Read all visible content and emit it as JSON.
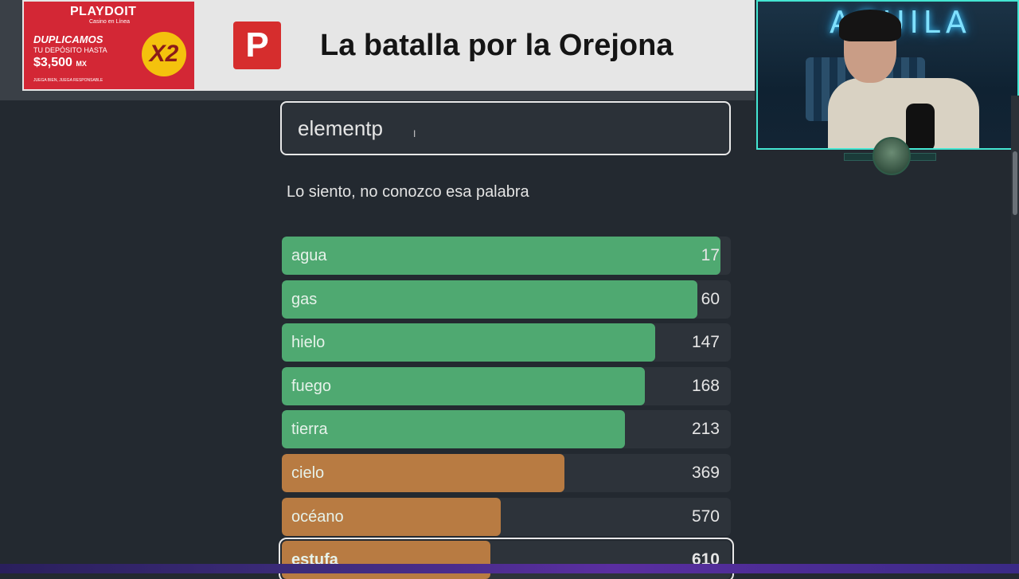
{
  "ad": {
    "brand": "PLAYDOIT",
    "sub": "Casino en Línea",
    "line1": "DUPLICAMOS",
    "line2": "TU DEPÓSITO HASTA",
    "amount": "$3,500",
    "currency": "MX",
    "multiplier": "X2",
    "fine_print": "JUEGA BIEN, JUEGA RESPONSABLE"
  },
  "banner": {
    "logo_letter": "P",
    "title": "La batalla por la Orejona"
  },
  "game": {
    "input_value": "elementp",
    "message": "Lo siento, no conozco esa palabra",
    "colors": {
      "close": "#4fa971",
      "medium": "#b87b42",
      "track": "#2d333a"
    },
    "results": [
      {
        "word": "agua",
        "rank": "17",
        "fill": 0.977,
        "tier": "close"
      },
      {
        "word": "gas",
        "rank": "60",
        "fill": 0.925,
        "tier": "close"
      },
      {
        "word": "hielo",
        "rank": "147",
        "fill": 0.832,
        "tier": "close"
      },
      {
        "word": "fuego",
        "rank": "168",
        "fill": 0.809,
        "tier": "close"
      },
      {
        "word": "tierra",
        "rank": "213",
        "fill": 0.765,
        "tier": "close"
      },
      {
        "word": "cielo",
        "rank": "369",
        "fill": 0.629,
        "tier": "medium"
      },
      {
        "word": "océano",
        "rank": "570",
        "fill": 0.488,
        "tier": "medium"
      },
      {
        "word": "estufa",
        "rank": "610",
        "fill": 0.465,
        "tier": "medium",
        "selected": true
      }
    ]
  },
  "webcam": {
    "neon_sign": "AGUILA"
  }
}
